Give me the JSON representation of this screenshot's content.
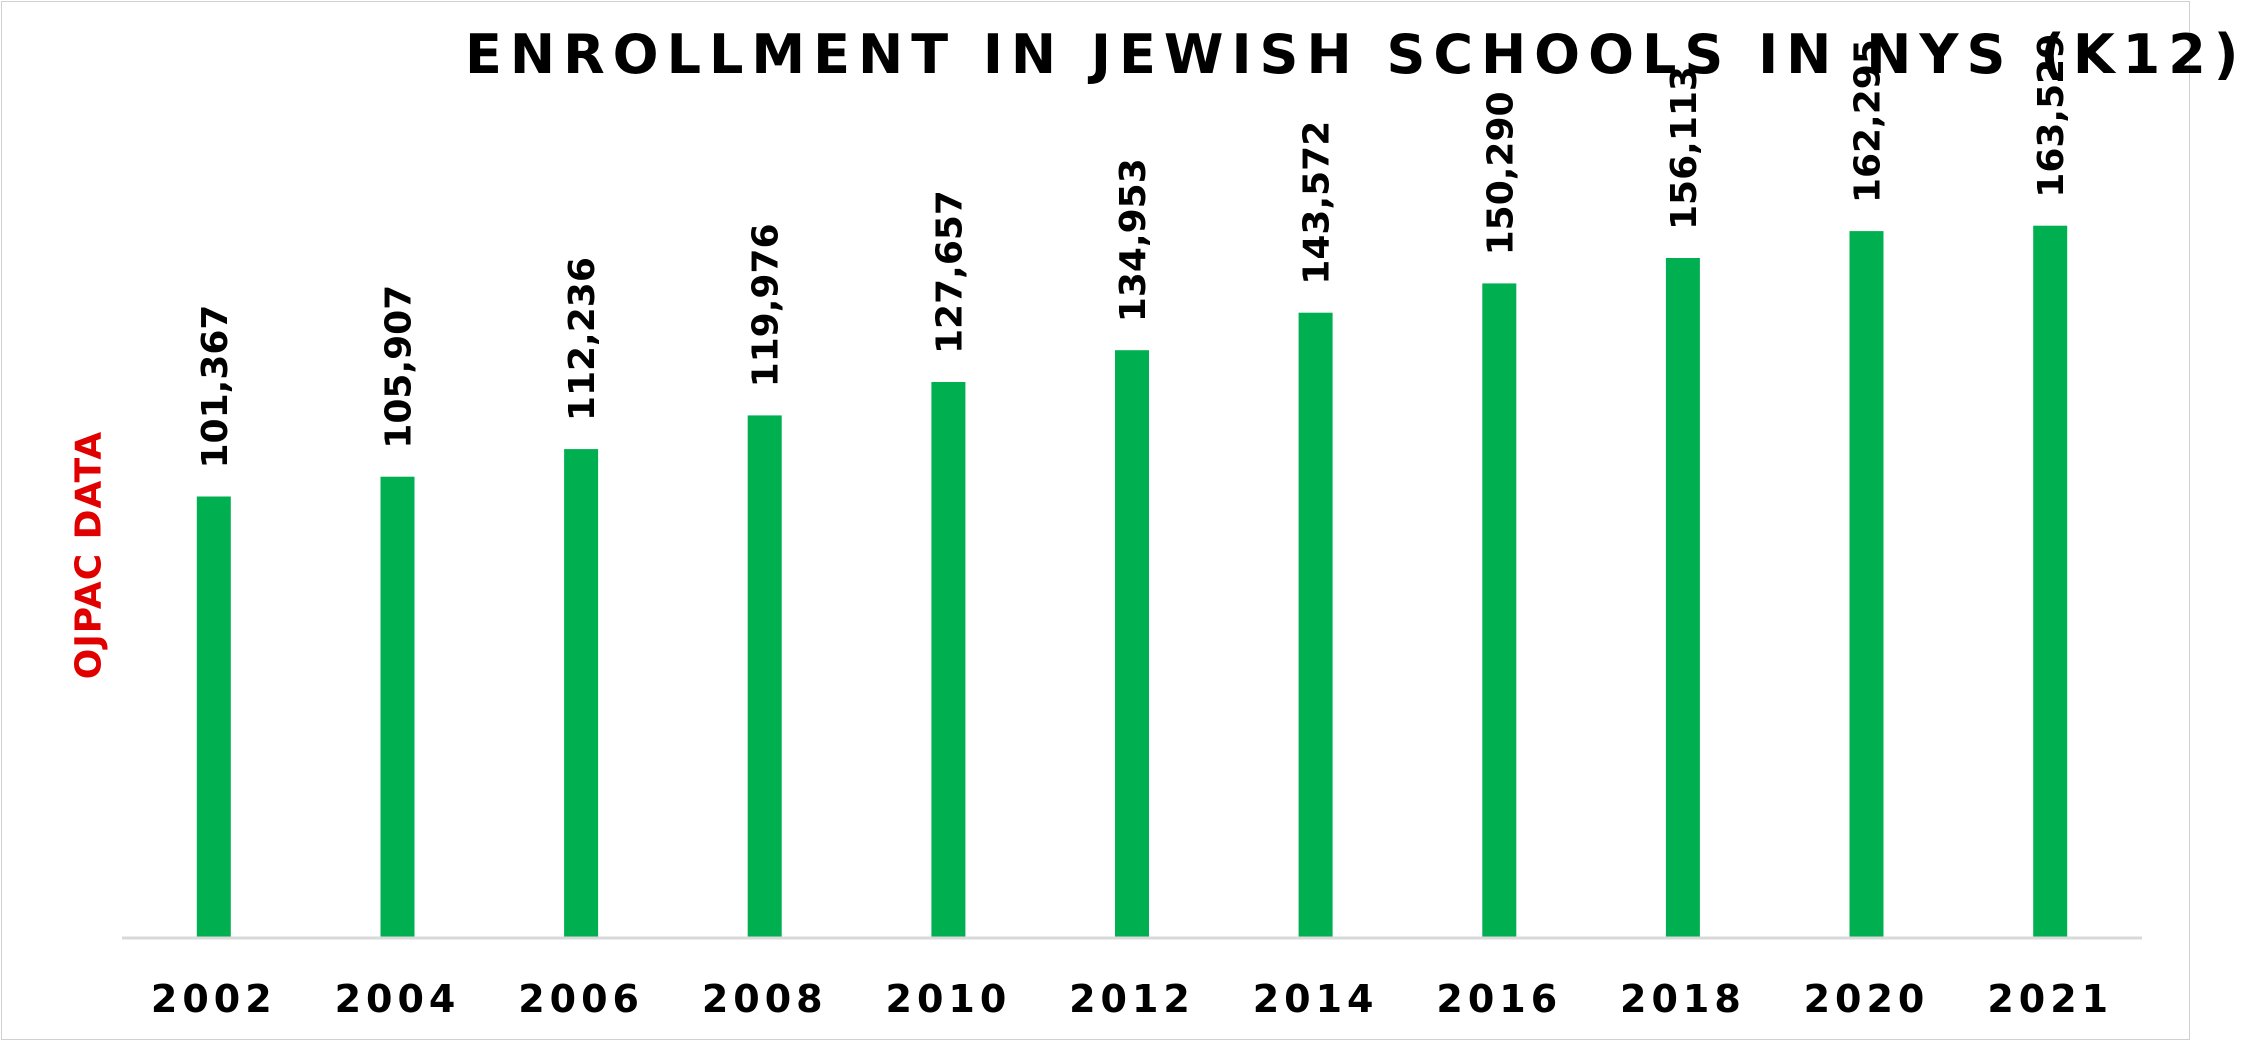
{
  "chart_data": {
    "type": "bar",
    "title": "ENROLLMENT IN JEWISH SCHOOLS IN NYS (K12)",
    "side_label": "OJPAC DATA",
    "categories": [
      "2002",
      "2004",
      "2006",
      "2008",
      "2010",
      "2012",
      "2014",
      "2016",
      "2018",
      "2020",
      "2021"
    ],
    "values": [
      101367,
      105907,
      112236,
      119976,
      127657,
      134953,
      143572,
      150290,
      156113,
      162295,
      163529
    ],
    "value_labels": [
      "101,367",
      "105,907",
      "112,236",
      "119,976",
      "127,657",
      "134,953",
      "143,572",
      "150,290",
      "156,113",
      "162,295",
      "163,529"
    ],
    "ylim": [
      0,
      225000
    ],
    "grid": false,
    "legend": "none",
    "bar_color": "#00b050",
    "side_label_color": "#e00000",
    "axis_color": "#d9d9d9"
  }
}
